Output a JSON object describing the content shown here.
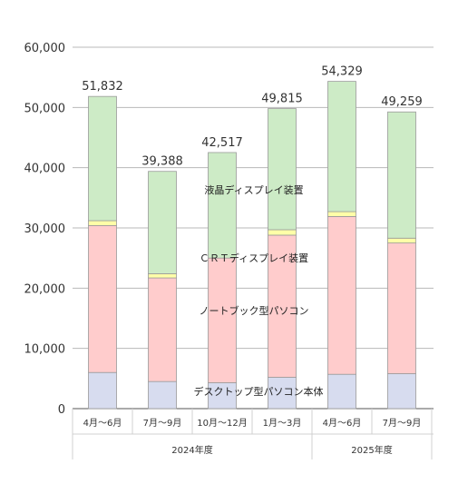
{
  "chart_data": {
    "type": "bar",
    "stacked": true,
    "categories": [
      "4月～6月",
      "7月～9月",
      "10月～12月",
      "1月～3月",
      "4月～6月",
      "7月～9月"
    ],
    "groups": [
      {
        "label": "2024年度",
        "span": 4
      },
      {
        "label": "2025年度",
        "span": 2
      }
    ],
    "series": [
      {
        "name": "デスクトップ型パソコン本体",
        "color": "#d7dcef",
        "values": [
          6000,
          4500,
          4300,
          5200,
          5700,
          5800
        ]
      },
      {
        "name": "ノートブック型パソコン",
        "color": "#ffcccc",
        "values": [
          24400,
          17200,
          20700,
          23600,
          26200,
          21700
        ]
      },
      {
        "name": "ＣＲＴディスプレイ装置",
        "color": "#ffffa8",
        "values": [
          800,
          700,
          0,
          900,
          800,
          800
        ]
      },
      {
        "name": "液晶ディスプレイ装置",
        "color": "#cdebc6",
        "values": [
          20632,
          16988,
          17517,
          20115,
          21629,
          20959
        ]
      }
    ],
    "totals": [
      {
        "label": "51,832",
        "value": 51832,
        "color": "#333333"
      },
      {
        "label": "39,388",
        "value": 39388,
        "color": "#333333"
      },
      {
        "label": "42,517",
        "value": 42517,
        "color": "#333333"
      },
      {
        "label": "49,815",
        "value": 49815,
        "color": "#333333"
      },
      {
        "label": "54,329",
        "value": 54329,
        "color": "#333333"
      },
      {
        "label": "49,259",
        "value": 49259,
        "color": "#e83c3c"
      }
    ],
    "category_colors": [
      "#333333",
      "#333333",
      "#333333",
      "#333333",
      "#333333",
      "#e83c3c"
    ],
    "yticks": [
      "0",
      "10,000",
      "20,000",
      "30,000",
      "40,000",
      "50,000",
      "60,000"
    ],
    "ylim": [
      0,
      60000
    ],
    "grid": true
  }
}
